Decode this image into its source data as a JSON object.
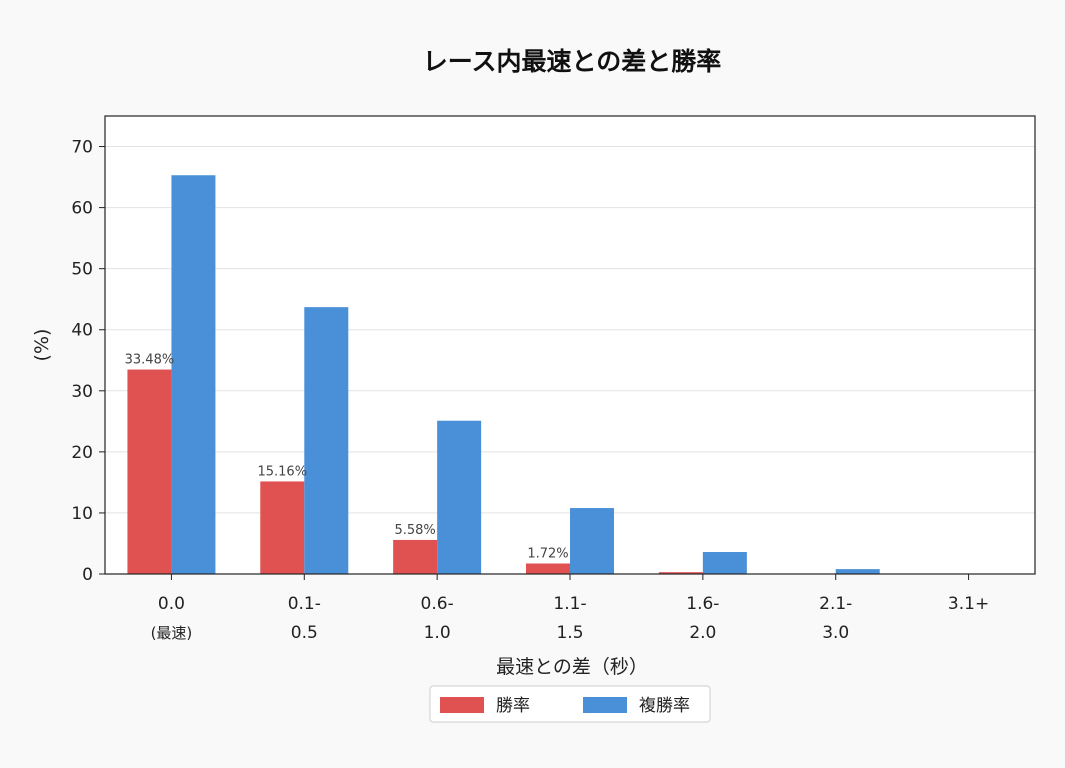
{
  "chart_data": {
    "type": "bar",
    "title": "レース内最速との差と勝率",
    "xlabel": "最速との差（秒）",
    "ylabel": "(%)",
    "categories": [
      "0.0\n(最速)",
      "0.1-\n0.5",
      "0.6-\n1.0",
      "1.1-\n1.5",
      "1.6-\n2.0",
      "2.1-\n3.0",
      "3.1+"
    ],
    "series": [
      {
        "name": "勝率",
        "color": "#e05252",
        "values": [
          33.48,
          15.16,
          5.58,
          1.72,
          0.3,
          0.0,
          0.0
        ],
        "value_labels": [
          "33.48%",
          "15.16%",
          "5.58%",
          "1.72%",
          "",
          "",
          ""
        ]
      },
      {
        "name": "複勝率",
        "color": "#4a90d9",
        "values": [
          65.3,
          43.7,
          25.1,
          10.8,
          3.6,
          0.8,
          0.0
        ],
        "value_labels": [
          "",
          "",
          "",
          "",
          "",
          "",
          ""
        ]
      }
    ],
    "ylim": [
      0,
      75
    ],
    "yticks": [
      0,
      10,
      20,
      30,
      40,
      50,
      60,
      70
    ],
    "grid": "horizontal",
    "legend_position": "bottom-center"
  }
}
